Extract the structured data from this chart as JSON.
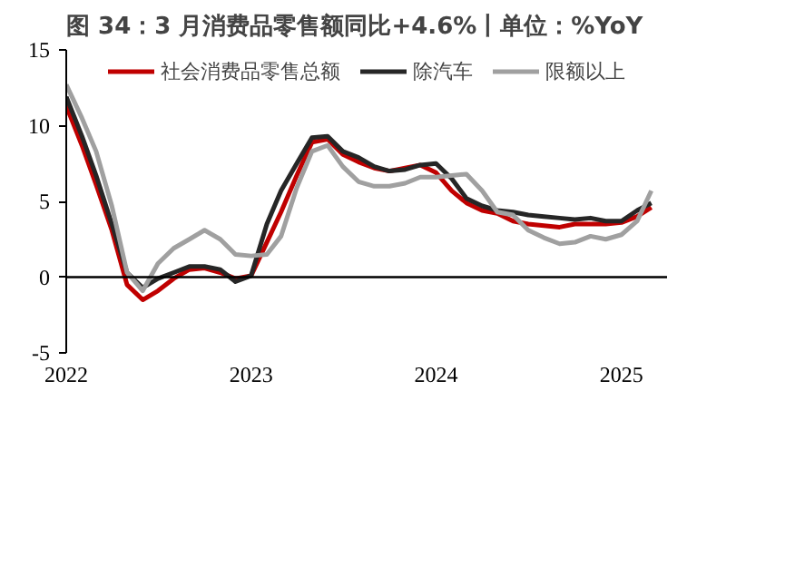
{
  "chart_data": {
    "type": "line",
    "title": "图 34：3 月消费品零售额同比+4.6%丨单位：%YoY",
    "x": [
      "2022-01",
      "2022-02",
      "2022-03",
      "2022-04",
      "2022-05",
      "2022-06",
      "2022-07",
      "2022-08",
      "2022-09",
      "2022-10",
      "2022-11",
      "2022-12",
      "2023-01",
      "2023-02",
      "2023-03",
      "2023-04",
      "2023-05",
      "2023-06",
      "2023-07",
      "2023-08",
      "2023-09",
      "2023-10",
      "2023-11",
      "2023-12",
      "2024-01",
      "2024-02",
      "2024-03",
      "2024-04",
      "2024-05",
      "2024-06",
      "2024-07",
      "2024-08",
      "2024-09",
      "2024-10",
      "2024-11",
      "2024-12",
      "2025-01",
      "2025-02",
      "2025-03"
    ],
    "series": [
      {
        "name": "社会消费品零售总额",
        "color": "#c00000",
        "values": [
          11.3,
          8.7,
          6.1,
          3.1,
          -0.5,
          -1.5,
          -0.9,
          -0.1,
          0.5,
          0.6,
          0.3,
          -0.1,
          0.1,
          2.3,
          4.3,
          6.7,
          8.9,
          9.1,
          8.1,
          7.6,
          7.2,
          7.0,
          7.2,
          7.4,
          6.9,
          5.7,
          4.9,
          4.4,
          4.2,
          3.7,
          3.5,
          3.4,
          3.3,
          3.5,
          3.5,
          3.5,
          3.6,
          4.0,
          4.6
        ]
      },
      {
        "name": "除汽车",
        "color": "#262626",
        "values": [
          11.9,
          9.3,
          6.7,
          3.5,
          0.3,
          -0.7,
          -0.1,
          0.3,
          0.7,
          0.7,
          0.5,
          -0.3,
          0.1,
          3.5,
          5.7,
          7.5,
          9.2,
          9.3,
          8.3,
          7.9,
          7.3,
          7.0,
          7.1,
          7.4,
          7.5,
          6.5,
          5.2,
          4.7,
          4.4,
          4.3,
          4.1,
          4.0,
          3.9,
          3.8,
          3.9,
          3.7,
          3.7,
          4.4,
          4.9
        ]
      },
      {
        "name": "限额以上",
        "color": "#a0a0a0",
        "values": [
          12.7,
          10.5,
          8.3,
          4.7,
          0.3,
          -0.9,
          0.9,
          1.9,
          2.5,
          3.1,
          2.5,
          1.5,
          1.4,
          1.5,
          2.7,
          5.9,
          8.3,
          8.7,
          7.3,
          6.3,
          6.0,
          6.0,
          6.2,
          6.6,
          6.6,
          6.7,
          6.8,
          5.7,
          4.3,
          4.1,
          3.1,
          2.6,
          2.2,
          2.3,
          2.7,
          2.5,
          2.8,
          3.7,
          5.7
        ]
      }
    ],
    "xlim": [
      "2022-01",
      "2025-04"
    ],
    "xticks": [
      {
        "value": "2022-01",
        "label": "2022"
      },
      {
        "value": "2023-01",
        "label": "2023"
      },
      {
        "value": "2024-01",
        "label": "2024"
      },
      {
        "value": "2025-01",
        "label": "2025"
      }
    ],
    "ylim": [
      -5,
      15
    ],
    "yticks": [
      -5,
      0,
      5,
      10,
      15
    ],
    "ref_lines": [
      {
        "axis": "y",
        "value": 0,
        "color": "#000000"
      }
    ],
    "grid": false,
    "legend": "top",
    "line_style": "solid",
    "marker": "none"
  }
}
